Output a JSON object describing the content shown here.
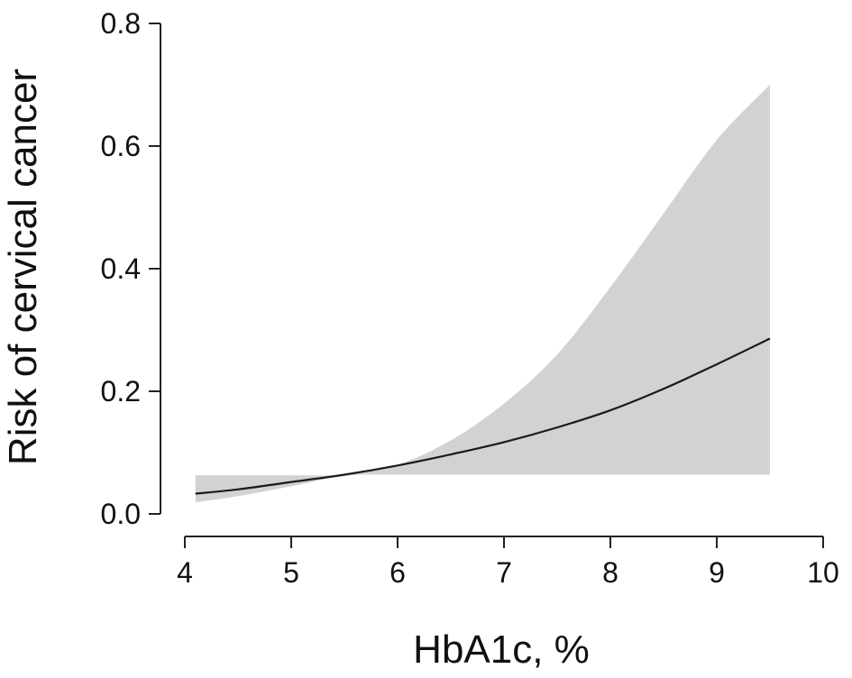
{
  "chart_data": {
    "type": "area",
    "title": "",
    "xlabel": "HbA1c, %",
    "ylabel": "Risk of cervical cancer",
    "xlim": [
      4,
      10
    ],
    "ylim": [
      0,
      0.8
    ],
    "x_ticks": [
      "4",
      "5",
      "6",
      "7",
      "8",
      "9",
      "10"
    ],
    "y_ticks": [
      "0.0",
      "0.2",
      "0.4",
      "0.6",
      "0.8"
    ],
    "grid": false,
    "legend": "none",
    "colors": {
      "band": "#d2d2d2",
      "line": "#1a1a1a",
      "axis": "#222222"
    },
    "series": [
      {
        "kind": "line",
        "x": [
          4.1,
          4.5,
          5.0,
          5.5,
          6.0,
          6.5,
          7.0,
          7.5,
          8.0,
          8.5,
          9.0,
          9.5
        ],
        "y": [
          0.033,
          0.04,
          0.052,
          0.064,
          0.079,
          0.097,
          0.117,
          0.141,
          0.169,
          0.204,
          0.244,
          0.286
        ]
      },
      {
        "kind": "ci-band",
        "x": [
          4.1,
          4.5,
          5.0,
          5.5,
          6.0,
          6.5,
          7.0,
          7.5,
          8.0,
          8.5,
          9.0,
          9.5
        ],
        "lower": [
          0.019,
          0.029,
          0.045,
          0.062,
          0.064,
          0.064,
          0.064,
          0.064,
          0.064,
          0.064,
          0.064,
          0.064
        ],
        "upper": [
          0.063,
          0.063,
          0.063,
          0.064,
          0.08,
          0.12,
          0.18,
          0.26,
          0.37,
          0.49,
          0.61,
          0.7
        ]
      }
    ]
  }
}
